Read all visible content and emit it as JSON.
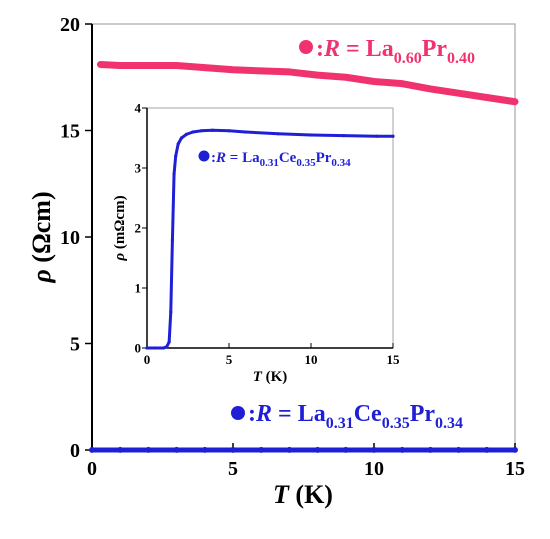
{
  "chart_data": [
    {
      "type": "scatter",
      "role": "main",
      "xlabel": {
        "var": "T",
        "unit": " (K)"
      },
      "ylabel": {
        "var": "ρ",
        "unit": " (Ωcm)"
      },
      "xlim": [
        0,
        15
      ],
      "ylim": [
        0,
        20
      ],
      "xticks": [
        "0",
        "5",
        "10",
        "15"
      ],
      "yticks": [
        "0",
        "5",
        "10",
        "15",
        "20"
      ],
      "grid": false,
      "series": [
        {
          "name": "R = La0.60Pr0.40",
          "color": "#f0336e",
          "x": [
            0.3,
            1,
            2,
            3,
            4,
            5,
            6,
            7,
            8,
            9,
            10,
            11,
            12,
            13,
            14,
            15
          ],
          "y": [
            18.1,
            18.05,
            18.05,
            18.05,
            17.95,
            17.85,
            17.8,
            17.75,
            17.6,
            17.5,
            17.3,
            17.2,
            16.95,
            16.75,
            16.55,
            16.35
          ]
        },
        {
          "name": "R = La0.31Ce0.35Pr0.34",
          "color": "#1f1fd6",
          "x": [
            0,
            1,
            2,
            3,
            4,
            5,
            6,
            7,
            8,
            9,
            10,
            11,
            12,
            13,
            14,
            15
          ],
          "y": [
            0.003,
            0.003,
            0.003,
            0.003,
            0.003,
            0.003,
            0.003,
            0.003,
            0.003,
            0.003,
            0.003,
            0.003,
            0.003,
            0.003,
            0.003,
            0.003
          ]
        }
      ]
    },
    {
      "type": "line",
      "role": "inset",
      "xlabel": {
        "var": "T",
        "unit": " (K)"
      },
      "ylabel": {
        "var": "ρ",
        "unit": " (mΩcm)"
      },
      "xlim": [
        0,
        15
      ],
      "ylim": [
        0,
        4
      ],
      "xticks": [
        "0",
        "5",
        "10",
        "15"
      ],
      "yticks": [
        "0",
        "1",
        "2",
        "3",
        "4"
      ],
      "grid": false,
      "series": [
        {
          "name": "R = La0.31Ce0.35Pr0.34",
          "color": "#1f1fd6",
          "x": [
            0,
            0.5,
            1.0,
            1.2,
            1.35,
            1.45,
            1.55,
            1.65,
            1.75,
            1.9,
            2.1,
            2.4,
            2.8,
            3.3,
            4.0,
            5.0,
            6.0,
            8.0,
            10.0,
            12.0,
            14.0,
            15.0
          ],
          "y": [
            0.0,
            0.0,
            0.0,
            0.02,
            0.1,
            0.6,
            1.8,
            2.9,
            3.2,
            3.4,
            3.5,
            3.56,
            3.6,
            3.62,
            3.63,
            3.62,
            3.6,
            3.57,
            3.55,
            3.54,
            3.53,
            3.53
          ]
        }
      ]
    }
  ],
  "legend": {
    "red": {
      "prefix": ":",
      "var": "R",
      "eq": " = La",
      "s1": "0.60",
      "el2": "Pr",
      "s2": "0.40",
      "color": "#f0336e"
    },
    "blue": {
      "prefix": ":",
      "var": "R",
      "eq": " = La",
      "s1": "0.31",
      "el2": "Ce",
      "s2": "0.35",
      "el3": "Pr",
      "s3": "0.34",
      "color": "#1f1fd6"
    },
    "inset": {
      "prefix": ":",
      "var": "R",
      "eq": " = La",
      "s1": "0.31",
      "el2": "Ce",
      "s2": "0.35",
      "el3": "Pr",
      "s3": "0.34",
      "color": "#1f1fd6"
    }
  }
}
